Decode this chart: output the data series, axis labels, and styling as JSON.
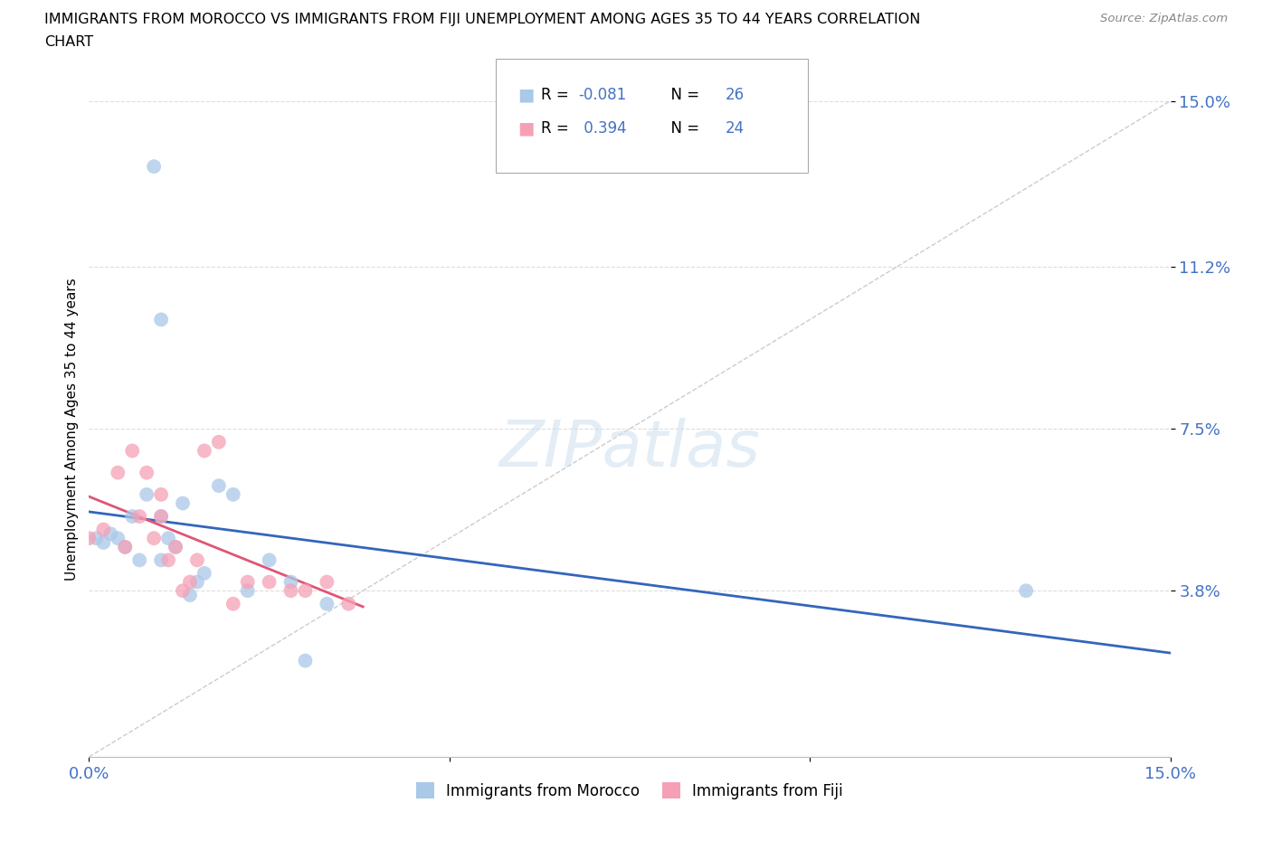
{
  "title_line1": "IMMIGRANTS FROM MOROCCO VS IMMIGRANTS FROM FIJI UNEMPLOYMENT AMONG AGES 35 TO 44 YEARS CORRELATION",
  "title_line2": "CHART",
  "source": "Source: ZipAtlas.com",
  "accent_color": "#4472c4",
  "ylabel": "Unemployment Among Ages 35 to 44 years",
  "xlim": [
    0,
    0.15
  ],
  "ylim": [
    0,
    0.15
  ],
  "ytick_labels": [
    "3.8%",
    "7.5%",
    "11.2%",
    "15.0%"
  ],
  "ytick_values": [
    0.038,
    0.075,
    0.112,
    0.15
  ],
  "xtick_positions": [
    0.0,
    0.05,
    0.1,
    0.15
  ],
  "xtick_labels": [
    "0.0%",
    "",
    "",
    "15.0%"
  ],
  "morocco_color": "#aac8e8",
  "fiji_color": "#f5a0b5",
  "morocco_line_color": "#3366bb",
  "fiji_line_color": "#e05575",
  "dashed_line_color": "#cccccc",
  "grid_color": "#dddddd",
  "background_color": "#ffffff",
  "R_morocco": -0.081,
  "N_morocco": 26,
  "R_fiji": 0.394,
  "N_fiji": 24,
  "morocco_x": [
    0.001,
    0.002,
    0.003,
    0.004,
    0.005,
    0.006,
    0.007,
    0.008,
    0.009,
    0.01,
    0.01,
    0.011,
    0.012,
    0.013,
    0.014,
    0.015,
    0.016,
    0.018,
    0.02,
    0.022,
    0.025,
    0.028,
    0.03,
    0.033,
    0.13,
    0.01
  ],
  "morocco_y": [
    0.05,
    0.049,
    0.051,
    0.05,
    0.048,
    0.055,
    0.045,
    0.06,
    0.135,
    0.045,
    0.055,
    0.05,
    0.048,
    0.058,
    0.037,
    0.04,
    0.042,
    0.062,
    0.06,
    0.038,
    0.045,
    0.04,
    0.022,
    0.035,
    0.038,
    0.1
  ],
  "fiji_x": [
    0.0,
    0.002,
    0.004,
    0.005,
    0.006,
    0.007,
    0.008,
    0.009,
    0.01,
    0.01,
    0.011,
    0.012,
    0.013,
    0.014,
    0.015,
    0.016,
    0.018,
    0.02,
    0.022,
    0.025,
    0.028,
    0.03,
    0.033,
    0.036
  ],
  "fiji_y": [
    0.05,
    0.052,
    0.065,
    0.048,
    0.07,
    0.055,
    0.065,
    0.05,
    0.055,
    0.06,
    0.045,
    0.048,
    0.038,
    0.04,
    0.045,
    0.07,
    0.072,
    0.035,
    0.04,
    0.04,
    0.038,
    0.038,
    0.04,
    0.035
  ],
  "legend_entries": [
    {
      "label": "R = -0.081   N = 26",
      "color": "#aac8e8"
    },
    {
      "label": "R =  0.394   N = 24",
      "color": "#f5a0b5"
    }
  ],
  "bottom_legend": [
    "Immigrants from Morocco",
    "Immigrants from Fiji"
  ]
}
